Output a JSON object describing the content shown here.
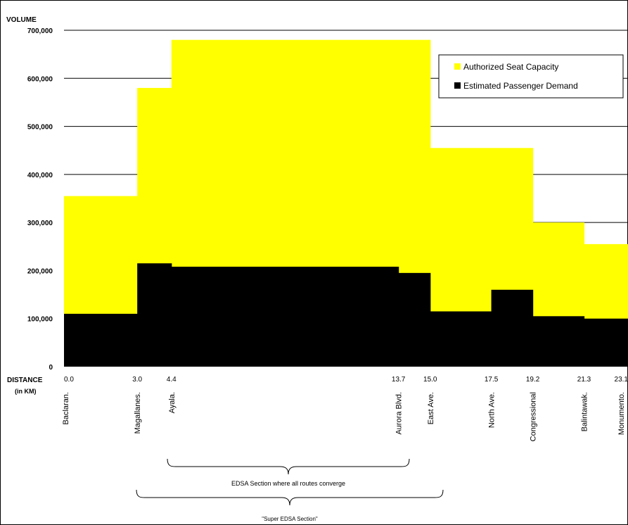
{
  "chart_data": {
    "type": "area",
    "y_axis_title": "VOLUME",
    "x_axis_title_line1": "DISTANCE",
    "x_axis_title_line2": "(in KM)",
    "ylim": [
      0,
      700000
    ],
    "y_ticks": [
      0,
      100000,
      200000,
      300000,
      400000,
      500000,
      600000,
      700000
    ],
    "y_tick_labels": [
      "0",
      "100,000",
      "200,000",
      "300,000",
      "400,000",
      "500,000",
      "600,000",
      "700,000"
    ],
    "grid": "horizontal major gridlines",
    "legend_position": "top-right",
    "xlim": [
      0,
      23.1
    ],
    "stations": [
      {
        "name": "Baclaran.",
        "km": 0.0,
        "km_label": "0.0"
      },
      {
        "name": "Magallanes.",
        "km": 3.0,
        "km_label": "3.0"
      },
      {
        "name": "Ayala.",
        "km": 4.4,
        "km_label": "4.4"
      },
      {
        "name": "Aurora Blvd.",
        "km": 13.7,
        "km_label": "13.7"
      },
      {
        "name": "East Ave.",
        "km": 15.0,
        "km_label": "15.0"
      },
      {
        "name": "North Ave.",
        "km": 17.5,
        "km_label": "17.5"
      },
      {
        "name": "Congressional",
        "km": 19.2,
        "km_label": "19.2"
      },
      {
        "name": "Balintawak.",
        "km": 21.3,
        "km_label": "21.3"
      },
      {
        "name": "Monumento.",
        "km": 23.1,
        "km_label": "23.1"
      }
    ],
    "series": [
      {
        "name": "Authorized Seat Capacity",
        "color": "#ffff00",
        "steps": [
          {
            "x0": 0.0,
            "x1": 3.0,
            "value": 355000
          },
          {
            "x0": 3.0,
            "x1": 4.4,
            "value": 580000
          },
          {
            "x0": 4.4,
            "x1": 15.0,
            "value": 680000
          },
          {
            "x0": 15.0,
            "x1": 19.2,
            "value": 455000
          },
          {
            "x0": 19.2,
            "x1": 21.3,
            "value": 300000
          },
          {
            "x0": 21.3,
            "x1": 23.1,
            "value": 255000
          }
        ]
      },
      {
        "name": "Estimated Passenger Demand",
        "color": "#000000",
        "steps": [
          {
            "x0": 0.0,
            "x1": 3.0,
            "value": 110000
          },
          {
            "x0": 3.0,
            "x1": 4.4,
            "value": 215000
          },
          {
            "x0": 4.4,
            "x1": 13.7,
            "value": 208000
          },
          {
            "x0": 13.7,
            "x1": 15.0,
            "value": 195000
          },
          {
            "x0": 15.0,
            "x1": 17.5,
            "value": 115000
          },
          {
            "x0": 17.5,
            "x1": 19.2,
            "value": 160000
          },
          {
            "x0": 19.2,
            "x1": 21.3,
            "value": 105000
          },
          {
            "x0": 21.3,
            "x1": 23.1,
            "value": 100000
          }
        ]
      }
    ],
    "annotations": [
      {
        "text": "EDSA  Section  where  all routes  converge",
        "from_km": 4.4,
        "to_km": 15.0
      },
      {
        "text": "\"Super  EDSA  Section\"",
        "from_km": 3.0,
        "to_km": 15.0
      }
    ]
  }
}
